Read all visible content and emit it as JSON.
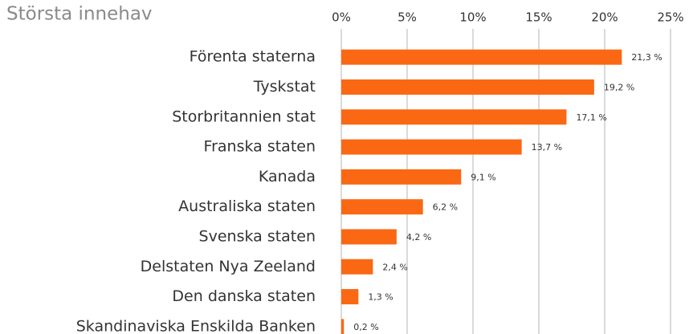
{
  "chart_data": {
    "type": "bar",
    "orientation": "horizontal",
    "title": "Största innehav",
    "categories": [
      "Förenta staterna",
      "Tyskstat",
      "Storbritannien stat",
      "Franska staten",
      "Kanada",
      "Australiska staten",
      "Svenska staten",
      "Delstaten Nya Zeeland",
      "Den danska staten",
      "Skandinaviska Enskilda Banken"
    ],
    "values": [
      21.3,
      19.2,
      17.1,
      13.7,
      9.1,
      6.2,
      4.2,
      2.4,
      1.3,
      0.2
    ],
    "value_labels": [
      "21,3 %",
      "19,2 %",
      "17,1 %",
      "13,7 %",
      "9,1 %",
      "6,2 %",
      "4,2 %",
      "2,4 %",
      "1,3 %",
      "0,2 %"
    ],
    "color": "#fa6814",
    "xlim": [
      0,
      25
    ],
    "xticks": [
      {
        "value": 0,
        "label": "0%"
      },
      {
        "value": 5,
        "label": "5%"
      },
      {
        "value": 10,
        "label": "10%"
      },
      {
        "value": 15,
        "label": "15%"
      },
      {
        "value": 20,
        "label": "20%"
      },
      {
        "value": 25,
        "label": "25%"
      }
    ],
    "grid": true
  }
}
